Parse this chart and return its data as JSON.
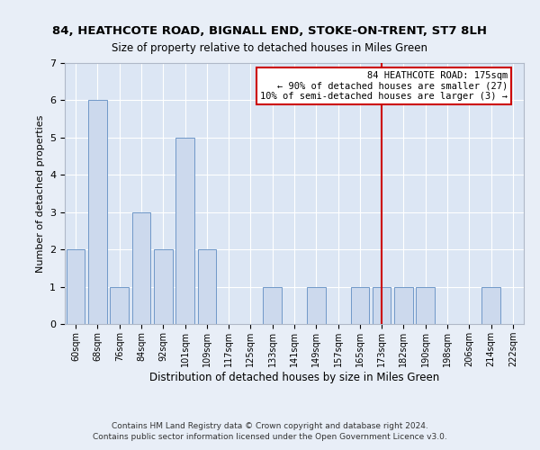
{
  "title": "84, HEATHCOTE ROAD, BIGNALL END, STOKE-ON-TRENT, ST7 8LH",
  "subtitle": "Size of property relative to detached houses in Miles Green",
  "xlabel": "Distribution of detached houses by size in Miles Green",
  "ylabel": "Number of detached properties",
  "bin_labels": [
    "60sqm",
    "68sqm",
    "76sqm",
    "84sqm",
    "92sqm",
    "101sqm",
    "109sqm",
    "117sqm",
    "125sqm",
    "133sqm",
    "141sqm",
    "149sqm",
    "157sqm",
    "165sqm",
    "173sqm",
    "182sqm",
    "190sqm",
    "198sqm",
    "206sqm",
    "214sqm",
    "222sqm"
  ],
  "bar_heights": [
    2,
    6,
    1,
    3,
    2,
    5,
    2,
    0,
    0,
    1,
    0,
    1,
    0,
    1,
    1,
    1,
    1,
    0,
    0,
    1,
    0
  ],
  "bar_color": "#ccd9ed",
  "bar_edge_color": "#7098c8",
  "ylim": [
    0,
    7
  ],
  "yticks": [
    0,
    1,
    2,
    3,
    4,
    5,
    6,
    7
  ],
  "vline_x": 14,
  "vline_color": "#cc0000",
  "annotation_title": "84 HEATHCOTE ROAD: 175sqm",
  "annotation_line1": "← 90% of detached houses are smaller (27)",
  "annotation_line2": "10% of semi-detached houses are larger (3) →",
  "annotation_box_color": "#ffffff",
  "annotation_box_edge": "#cc0000",
  "footer1": "Contains HM Land Registry data © Crown copyright and database right 2024.",
  "footer2": "Contains public sector information licensed under the Open Government Licence v3.0.",
  "bg_color": "#e8eef7",
  "plot_bg_color": "#dce6f4"
}
